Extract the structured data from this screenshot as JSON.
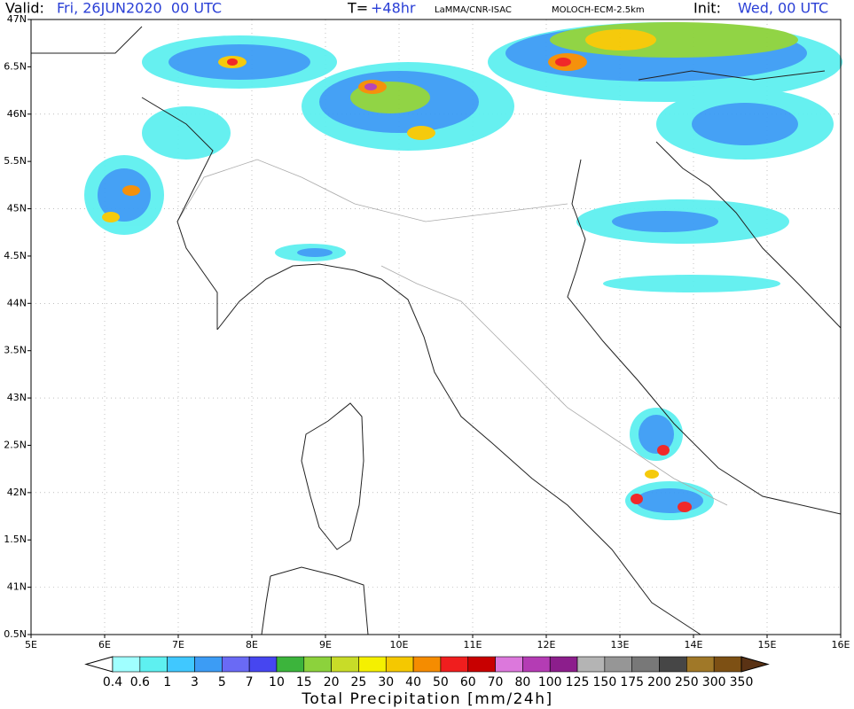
{
  "header": {
    "valid_label": "Valid:",
    "valid_date": "Fri, 26JUN2020  00 UTC",
    "lead_label": "T=",
    "lead": "+48hr",
    "source": "LaMMA/CNR-ISAC",
    "model": "MOLOCH-ECM-2.5km",
    "init_label": "Init:",
    "init": "Wed, 00 UTC"
  },
  "map": {
    "lon_labels": [
      "5E",
      "6E",
      "7E",
      "8E",
      "9E",
      "10E",
      "11E",
      "12E",
      "13E",
      "14E",
      "15E",
      "16E"
    ],
    "lat_labels": [
      "47N",
      "6.5N",
      "46N",
      "5.5N",
      "45N",
      "4.5N",
      "44N",
      "3.5N",
      "43N",
      "2.5N",
      "42N",
      "1.5N",
      "41N",
      "0.5N"
    ]
  },
  "colorbar": {
    "title": "Total Precipitation [mm/24h]",
    "levels": [
      "0.4",
      "0.6",
      "1",
      "3",
      "5",
      "7",
      "10",
      "15",
      "20",
      "25",
      "30",
      "40",
      "50",
      "60",
      "70",
      "80",
      "100",
      "125",
      "150",
      "175",
      "200",
      "250",
      "300",
      "350"
    ],
    "colors": [
      "#ffffff",
      "#a0ffff",
      "#5ef0f0",
      "#40c8ff",
      "#3c9cf5",
      "#6a6af5",
      "#4646f0",
      "#3cb43c",
      "#8cd23c",
      "#c8dc28",
      "#f5f000",
      "#f5c800",
      "#f58c00",
      "#f01e1e",
      "#c80000",
      "#dc78dc",
      "#b43cb4",
      "#8c1e8c",
      "#b4b4b4",
      "#969696",
      "#787878",
      "#464646",
      "#a07828",
      "#7d5014",
      "#5a3214"
    ]
  }
}
